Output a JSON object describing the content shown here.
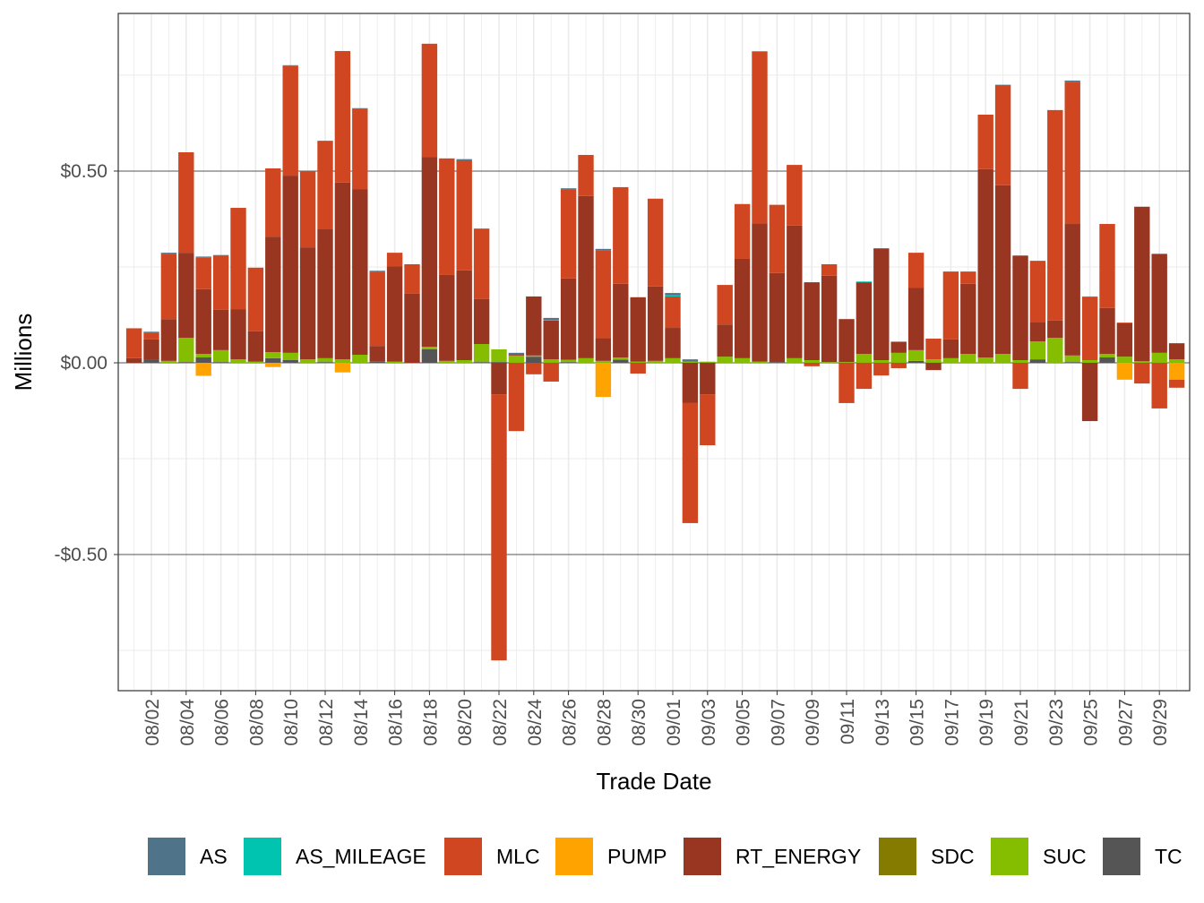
{
  "chart_data": {
    "type": "bar",
    "stacked": true,
    "title": "",
    "xlabel": "Trade Date",
    "ylabel": "Millions",
    "ylim": [
      -0.855,
      0.911
    ],
    "yticks": [
      -0.5,
      0,
      0.5
    ],
    "ytick_labels": [
      "-$0.50",
      "$0.00",
      "$0.50"
    ],
    "grid": true,
    "legend_position": "bottom",
    "categories": [
      "08/01",
      "08/02",
      "08/03",
      "08/04",
      "08/05",
      "08/06",
      "08/07",
      "08/08",
      "08/09",
      "08/10",
      "08/11",
      "08/12",
      "08/13",
      "08/14",
      "08/15",
      "08/16",
      "08/17",
      "08/18",
      "08/19",
      "08/20",
      "08/21",
      "08/22",
      "08/23",
      "08/24",
      "08/25",
      "08/26",
      "08/27",
      "08/28",
      "08/29",
      "08/30",
      "08/31",
      "09/01",
      "09/02",
      "09/03",
      "09/04",
      "09/05",
      "09/06",
      "09/07",
      "09/08",
      "09/09",
      "09/10",
      "09/11",
      "09/12",
      "09/13",
      "09/14",
      "09/15",
      "09/16",
      "09/17",
      "09/18",
      "09/19",
      "09/20",
      "09/21",
      "09/22",
      "09/23",
      "09/24",
      "09/25",
      "09/26",
      "09/27",
      "09/28",
      "09/29",
      "09/30"
    ],
    "xtick_labels": [
      "08/02",
      "08/04",
      "08/06",
      "08/08",
      "08/10",
      "08/12",
      "08/14",
      "08/16",
      "08/18",
      "08/20",
      "08/22",
      "08/24",
      "08/26",
      "08/28",
      "08/30",
      "09/01",
      "09/03",
      "09/05",
      "09/07",
      "09/09",
      "09/11",
      "09/13",
      "09/15",
      "09/17",
      "09/19",
      "09/21",
      "09/23",
      "09/25",
      "09/27",
      "09/29"
    ],
    "series": [
      {
        "name": "AS",
        "color": "#4f7489",
        "values": [
          0,
          0.003,
          0.003,
          0,
          0.002,
          0.002,
          0,
          0,
          0,
          0.002,
          0,
          0,
          0,
          0.002,
          0.002,
          0,
          0,
          0,
          0,
          0.003,
          0,
          0,
          0.003,
          0,
          0.005,
          0.002,
          0,
          0.003,
          0,
          0,
          0,
          0.006,
          0.006,
          0,
          0,
          0,
          0,
          0,
          0,
          0,
          0,
          0,
          0,
          0.002,
          0,
          0,
          0,
          0,
          0,
          0,
          0.002,
          0.002,
          0,
          0,
          0.004,
          0.002,
          0,
          0,
          0,
          0,
          0
        ]
      },
      {
        "name": "AS_MILEAGE",
        "color": "#00c4b0",
        "values": [
          0,
          0,
          0,
          0,
          0,
          0,
          0,
          0,
          0,
          0,
          0,
          0,
          0,
          0,
          0,
          0,
          0,
          0,
          0,
          0,
          0,
          0,
          0,
          0,
          0.002,
          0,
          0,
          0,
          0,
          0,
          0,
          0.003,
          0,
          0,
          0,
          0,
          0.002,
          0,
          0,
          0,
          0,
          0,
          0.002,
          0,
          0,
          0,
          0,
          0,
          0,
          0,
          0,
          0,
          0,
          0,
          0,
          0,
          0,
          0,
          0,
          0.002,
          0
        ]
      },
      {
        "name": "MLC",
        "color": "#d04620",
        "values": [
          0.078,
          0.017,
          0.17,
          0.262,
          0.083,
          0.141,
          0.264,
          0.166,
          0.178,
          0.286,
          0.199,
          0.231,
          0.343,
          0.209,
          0.194,
          0.035,
          0.077,
          0.295,
          0.304,
          0.287,
          0.184,
          -0.694,
          -0.178,
          -0.03,
          -0.049,
          0.233,
          0.107,
          0.229,
          0.252,
          -0.028,
          0.229,
          0.082,
          -0.313,
          -0.133,
          0.103,
          0.143,
          0.447,
          0.178,
          0.158,
          -0.009,
          0.03,
          -0.105,
          -0.068,
          -0.033,
          -0.014,
          0.091,
          0.054,
          0.177,
          0.032,
          0.142,
          0.26,
          -0.068,
          0.159,
          0.549,
          0.37,
          0.164,
          0.219,
          0.002,
          -0.054,
          -0.119,
          -0.021
        ]
      },
      {
        "name": "PUMP",
        "color": "#ffa300",
        "values": [
          0,
          0,
          0,
          0,
          -0.034,
          0,
          0,
          0,
          -0.011,
          0,
          0,
          0,
          -0.025,
          0,
          0,
          0,
          0,
          0,
          0,
          0,
          0,
          0,
          0,
          0,
          0,
          0,
          0,
          -0.089,
          0,
          0,
          0,
          0,
          0,
          0,
          0,
          0,
          0,
          0,
          0,
          0,
          0,
          0,
          0,
          0,
          0,
          0,
          0,
          0,
          0,
          0,
          0,
          0,
          0,
          0,
          0,
          0,
          0,
          -0.044,
          0,
          0,
          -0.044
        ]
      },
      {
        "name": "RT_ENERGY",
        "color": "#983622",
        "values": [
          0.012,
          0.053,
          0.109,
          0.222,
          0.169,
          0.105,
          0.131,
          0.079,
          0.301,
          0.462,
          0.292,
          0.336,
          0.461,
          0.432,
          0.04,
          0.249,
          0.18,
          0.495,
          0.224,
          0.234,
          0.117,
          -0.082,
          0.004,
          0.154,
          0.101,
          0.212,
          0.423,
          0.06,
          0.192,
          0.168,
          0.194,
          0.079,
          -0.105,
          -0.082,
          0.084,
          0.259,
          0.361,
          0.232,
          0.346,
          0.203,
          0.225,
          0.112,
          0.187,
          0.29,
          0.029,
          0.163,
          -0.019,
          0.049,
          0.183,
          0.491,
          0.44,
          0.271,
          0.051,
          0.045,
          0.343,
          -0.152,
          0.12,
          0.087,
          0.403,
          0.257,
          0.042
        ]
      },
      {
        "name": "SDC",
        "color": "#857b00",
        "values": [
          0,
          0,
          0,
          0,
          0,
          0,
          0,
          0,
          0,
          0,
          0,
          0,
          0,
          0,
          0,
          0,
          0,
          0,
          0,
          0,
          0,
          0,
          0,
          0,
          0,
          0,
          0,
          0,
          0,
          0,
          0,
          0,
          0,
          0,
          0,
          0,
          0,
          0,
          0,
          0,
          0,
          0,
          0,
          0,
          0,
          0,
          0,
          0,
          0,
          0,
          0,
          0,
          0,
          0,
          0,
          0,
          0,
          0,
          0,
          0,
          0
        ]
      },
      {
        "name": "SUC",
        "color": "#85bd00",
        "values": [
          0,
          0,
          0.005,
          0.063,
          0.009,
          0.031,
          0.009,
          0.003,
          0.016,
          0.019,
          0.009,
          0.01,
          0.009,
          0.021,
          0,
          0.003,
          0,
          0.007,
          0.005,
          0.007,
          0.047,
          0.033,
          0.019,
          0.003,
          0.009,
          0.006,
          0.012,
          0.005,
          0.006,
          0.003,
          0.005,
          0.012,
          0.003,
          0.003,
          0.016,
          0.012,
          0.003,
          0,
          0.012,
          0.007,
          0.002,
          0.002,
          0.023,
          0.007,
          0.026,
          0.028,
          0.009,
          0.012,
          0.023,
          0.014,
          0.023,
          0.007,
          0.047,
          0.065,
          0.017,
          0.007,
          0.009,
          0.016,
          0.004,
          0.026,
          0.009
        ]
      },
      {
        "name": "TC",
        "color": "#555555",
        "values": [
          0,
          0.008,
          0,
          0.002,
          0.014,
          0.002,
          0,
          0,
          0.012,
          0.007,
          0,
          0.002,
          0,
          0,
          0.004,
          0,
          0,
          0.035,
          0,
          0,
          0.002,
          0.002,
          0,
          0.016,
          0,
          0.002,
          0,
          0,
          0.008,
          0,
          0,
          0,
          0,
          0,
          0,
          0,
          0,
          0.002,
          0,
          0,
          0,
          0,
          0,
          0,
          0,
          0.005,
          0,
          0,
          0,
          0,
          0,
          0,
          0.009,
          0,
          0.002,
          0,
          0.014,
          0,
          0,
          0,
          0
        ]
      }
    ]
  }
}
